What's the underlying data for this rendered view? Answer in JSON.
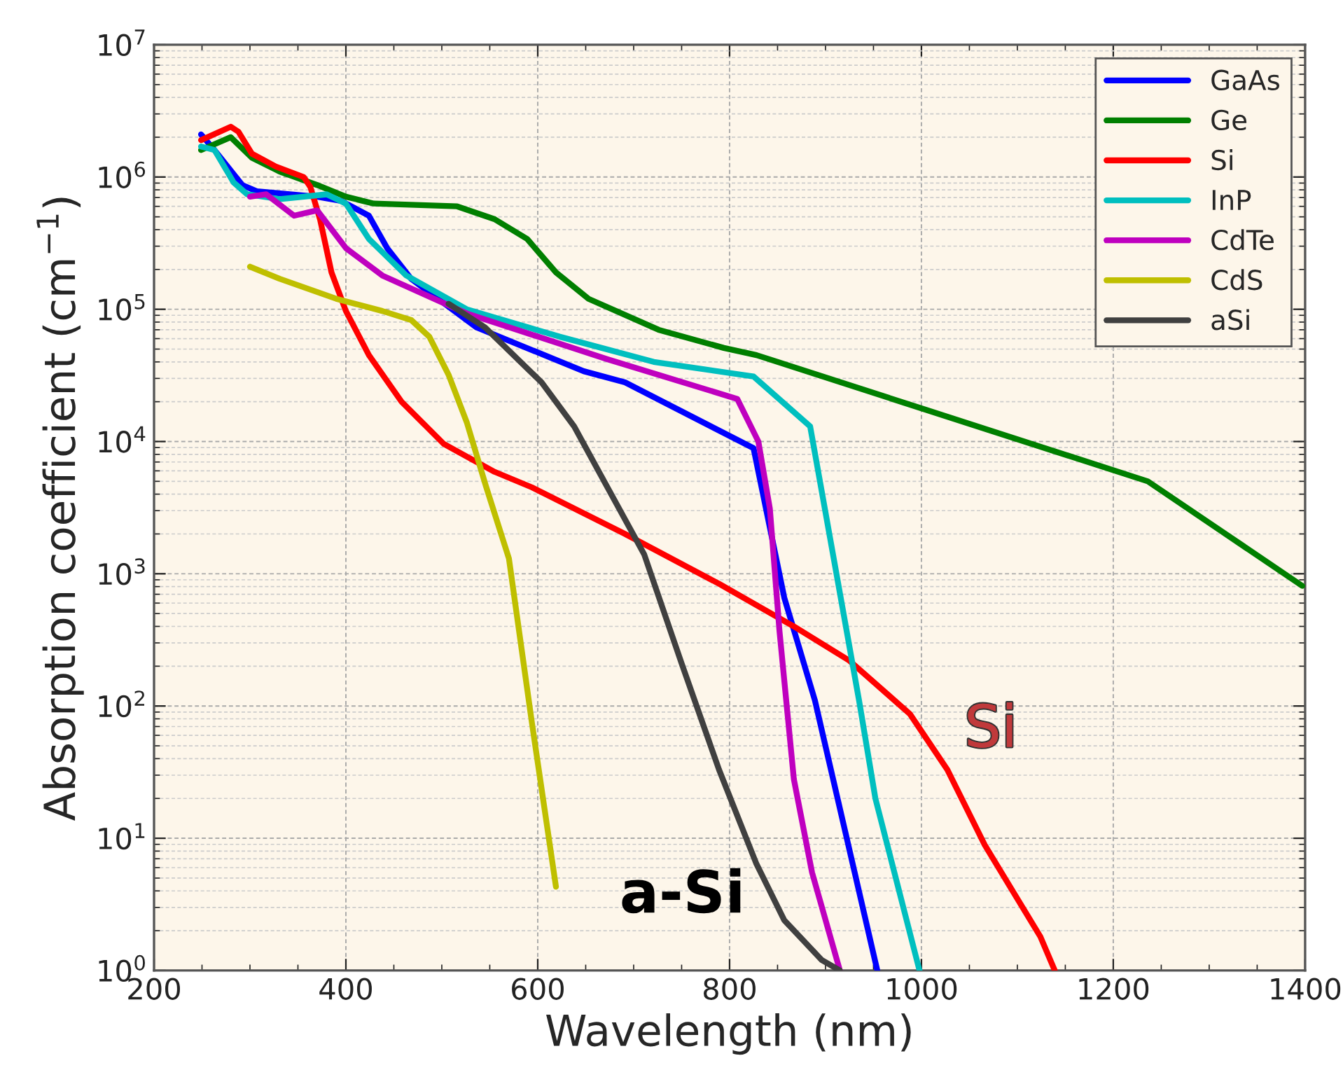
{
  "chart_data": {
    "type": "line",
    "xlabel": "Wavelength (nm)",
    "ylabel": "Absorption coefficient (cm$^{−1}$)",
    "log": "y",
    "grid": true,
    "legend": "top right",
    "line_style": "solid",
    "marker": "none",
    "xlim": [
      200,
      1400
    ],
    "xticks": [
      200,
      400,
      600,
      800,
      1000,
      1200,
      1400
    ],
    "ylim": [
      1,
      10000000
    ],
    "yticks": [
      {
        "value": 1,
        "label": "10$^{0}$"
      },
      {
        "value": 10,
        "label": "10$^{1}$"
      },
      {
        "value": 100,
        "label": "10$^{2}$"
      },
      {
        "value": 1000,
        "label": "10$^{3}$"
      },
      {
        "value": 10000,
        "label": "10$^{4}$"
      },
      {
        "value": 100000,
        "label": "10$^{5}$"
      },
      {
        "value": 1000000,
        "label": "10$^{6}$"
      },
      {
        "value": 10000000,
        "label": "10$^{7}$"
      }
    ],
    "series": [
      {
        "name": "GaAs",
        "color": "#0000ff",
        "x": [
          249,
          263,
          292,
          307,
          370,
          395,
          424,
          443,
          468,
          536,
          648,
          691,
          825,
          857,
          889,
          954
        ],
        "values": [
          2100000,
          1600000,
          870000,
          780000,
          710000,
          660000,
          510000,
          290000,
          170000,
          73000,
          34000,
          28000,
          8900,
          660,
          110,
          1
        ]
      },
      {
        "name": "Ge",
        "color": "#007f00",
        "x": [
          249,
          280,
          302,
          331,
          370,
          400,
          429,
          516,
          555,
          589,
          619,
          653,
          726,
          794,
          828,
          998,
          1236,
          1397
        ],
        "values": [
          1600000,
          2000000,
          1400000,
          1100000,
          870000,
          710000,
          630000,
          600000,
          480000,
          340000,
          190000,
          120000,
          70000,
          51000,
          45000,
          18000,
          5000,
          810
        ]
      },
      {
        "name": "Si",
        "color": "#ff0000",
        "x": [
          249,
          280,
          288,
          302,
          327,
          356,
          363,
          373,
          385,
          400,
          424,
          458,
          502,
          555,
          594,
          691,
          789,
          867,
          925,
          988,
          1027,
          1066,
          1124,
          1139
        ],
        "values": [
          1900000,
          2400000,
          2200000,
          1500000,
          1200000,
          1000000,
          840000,
          480000,
          190000,
          97000,
          45000,
          20000,
          9600,
          5900,
          4500,
          2000,
          840,
          400,
          220,
          87,
          33,
          8.9,
          1.8,
          1
        ]
      },
      {
        "name": "InP",
        "color": "#00bfbf",
        "x": [
          249,
          263,
          283,
          297,
          331,
          380,
          400,
          424,
          463,
          526,
          623,
          721,
          825,
          884,
          935,
          952,
          998
        ],
        "values": [
          1700000,
          1600000,
          910000,
          740000,
          680000,
          740000,
          630000,
          340000,
          180000,
          100000,
          62000,
          40000,
          31000,
          13000,
          110,
          20,
          1
        ]
      },
      {
        "name": "CdTe",
        "color": "#bf00bf",
        "x": [
          300,
          317,
          346,
          370,
          400,
          438,
          526,
          672,
          808,
          830,
          842,
          852,
          867,
          886,
          915
        ],
        "values": [
          710000,
          740000,
          510000,
          560000,
          290000,
          180000,
          93000,
          42000,
          21000,
          10000,
          3100,
          370,
          28,
          5.5,
          1
        ]
      },
      {
        "name": "CdS",
        "color": "#bfbf00",
        "x": [
          300,
          331,
          390,
          438,
          468,
          487,
          507,
          526,
          546,
          570,
          594,
          619
        ],
        "values": [
          210000,
          170000,
          120000,
          97000,
          83000,
          62000,
          32000,
          14000,
          4600,
          1300,
          74,
          4.3
        ]
      },
      {
        "name": "aSi",
        "color": "#404040",
        "x": [
          507,
          545,
          604,
          638,
          672,
          711,
          750,
          789,
          828,
          857,
          896,
          915
        ],
        "values": [
          110000,
          73000,
          28000,
          13000,
          4600,
          1400,
          210,
          33,
          6.4,
          2.4,
          1.2,
          1
        ]
      }
    ],
    "annotations": [
      "Si",
      "a-Si"
    ]
  }
}
